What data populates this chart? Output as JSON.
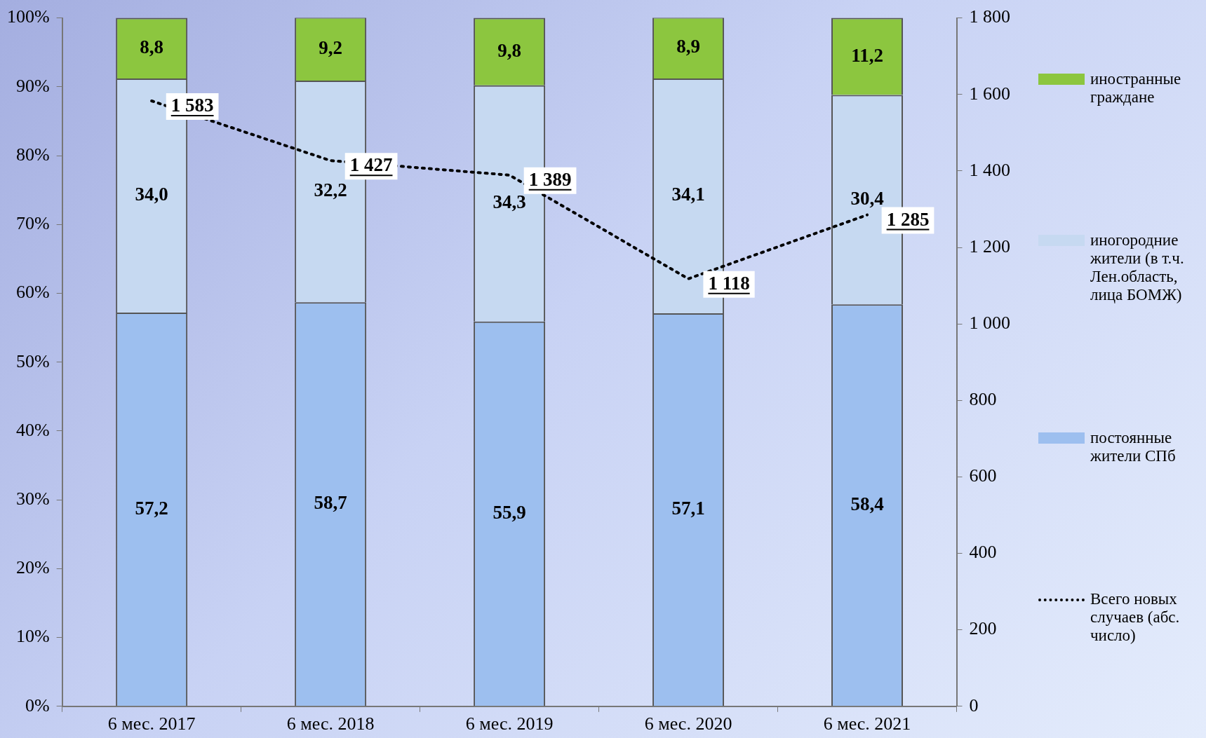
{
  "chart_data": {
    "type": "bar",
    "stacked": true,
    "legend": "right",
    "grid": false,
    "categories": [
      "6 мес. 2017",
      "6 мес. 2018",
      "6 мес. 2019",
      "6 мес. 2020",
      "6 мес. 2021"
    ],
    "series": [
      {
        "name": "постоянные жители СПб",
        "color": "#9dbfef",
        "values": [
          57.2,
          58.7,
          55.9,
          57.1,
          58.4
        ],
        "value_labels": [
          "57,2",
          "58,7",
          "55,9",
          "57,1",
          "58,4"
        ]
      },
      {
        "name": "иногородние жители (в т.ч. Лен.область, лица БОМЖ)",
        "color": "#c6d9f1",
        "values": [
          34.0,
          32.2,
          34.3,
          34.1,
          30.4
        ],
        "value_labels": [
          "34,0",
          "32,2",
          "34,3",
          "34,1",
          "30,4"
        ]
      },
      {
        "name": "иностранные граждане",
        "color": "#8cc63f",
        "values": [
          8.8,
          9.2,
          9.8,
          8.9,
          11.2
        ],
        "value_labels": [
          "8,8",
          "9,2",
          "9,8",
          "8,9",
          "11,2"
        ]
      },
      {
        "name": "Всего новых случаев (абс. число)",
        "type": "line",
        "axis": "y2",
        "color": "#000000",
        "line_style": "dotted",
        "marker": "none",
        "values": [
          1583,
          1427,
          1389,
          1118,
          1285
        ],
        "value_labels": [
          "1 583",
          "1 427",
          "1 389",
          "1 118",
          "1 285"
        ]
      }
    ],
    "ylim": [
      0,
      100
    ],
    "yticks": [
      {
        "value": 0,
        "label": "0%"
      },
      {
        "value": 10,
        "label": "10%"
      },
      {
        "value": 20,
        "label": "20%"
      },
      {
        "value": 30,
        "label": "30%"
      },
      {
        "value": 40,
        "label": "40%"
      },
      {
        "value": 50,
        "label": "50%"
      },
      {
        "value": 60,
        "label": "60%"
      },
      {
        "value": 70,
        "label": "70%"
      },
      {
        "value": 80,
        "label": "80%"
      },
      {
        "value": 90,
        "label": "90%"
      },
      {
        "value": 100,
        "label": "100%"
      }
    ],
    "y2lim": [
      0,
      1800
    ],
    "y2ticks": [
      0,
      200,
      400,
      600,
      800,
      {
        "value": 1000,
        "label": "1 000"
      },
      {
        "value": 1200,
        "label": "1 200"
      },
      {
        "value": 1400,
        "label": "1 400"
      },
      {
        "value": 1600,
        "label": "1 600"
      },
      {
        "value": 1800,
        "label": "1 800"
      }
    ]
  }
}
